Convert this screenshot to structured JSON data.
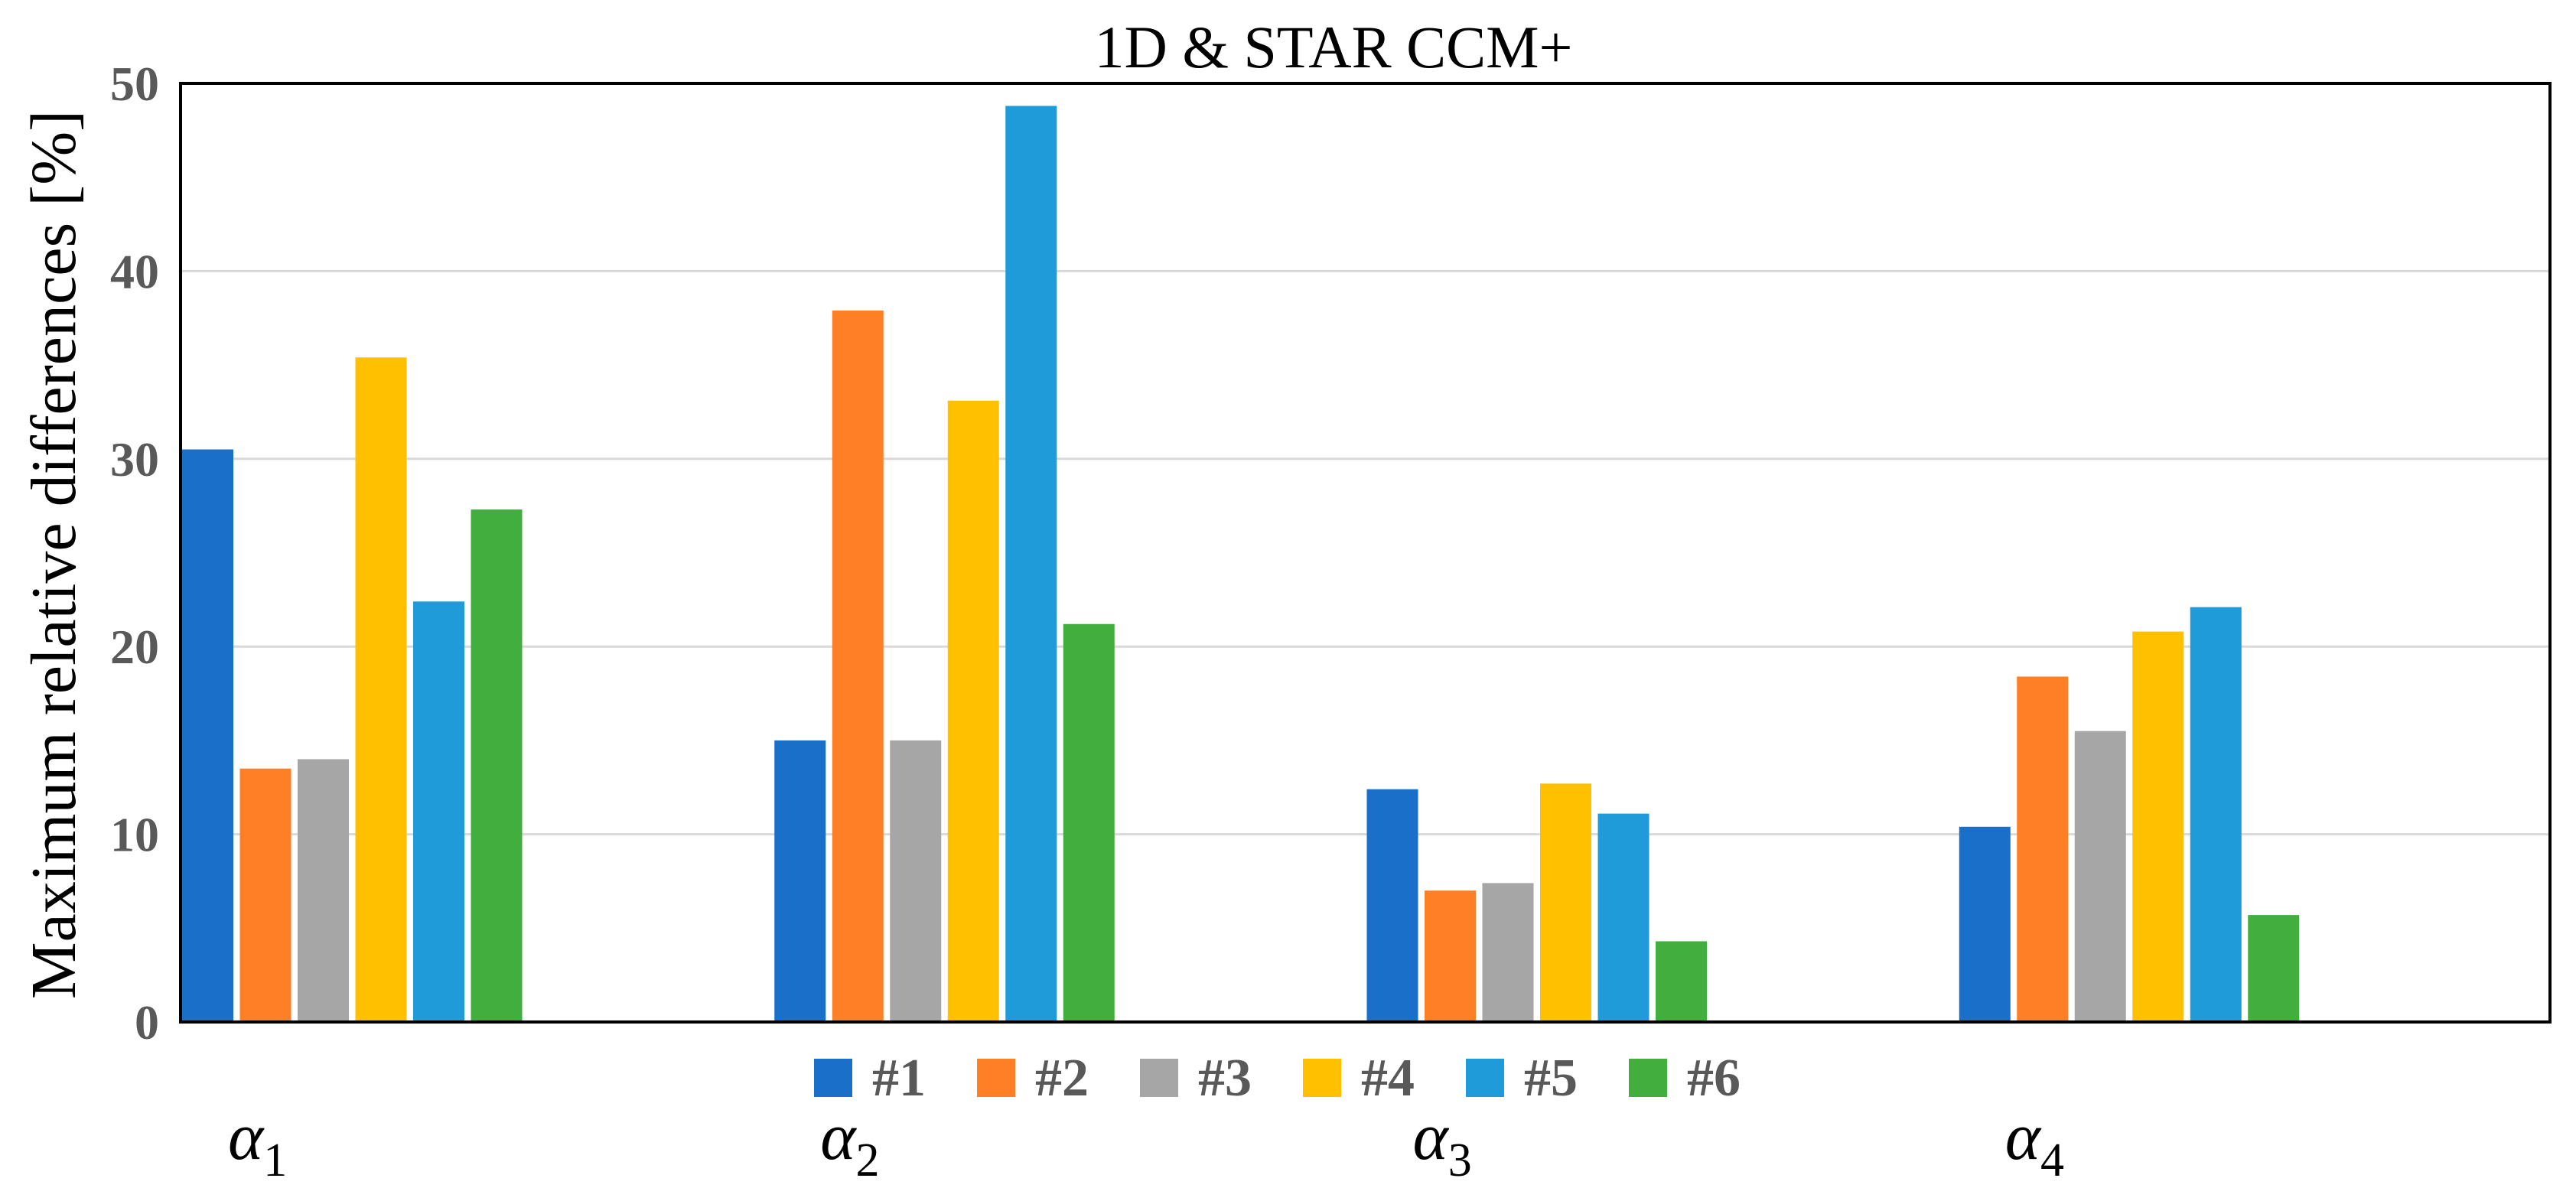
{
  "chart_data": {
    "type": "bar",
    "title": "1D & STAR CCM+",
    "xlabel": "",
    "ylabel": "Maximum relative differences [%]",
    "ylim": [
      0,
      50
    ],
    "y_ticks": [
      0,
      10,
      20,
      30,
      40,
      50
    ],
    "grid": true,
    "legend_position": "bottom-center",
    "categories": [
      {
        "symbol": "α",
        "subscript": "1"
      },
      {
        "symbol": "α",
        "subscript": "2"
      },
      {
        "symbol": "α",
        "subscript": "3"
      },
      {
        "symbol": "α",
        "subscript": "4"
      }
    ],
    "series": [
      {
        "name": "#1",
        "color": "#1a6fc9",
        "values": [
          30.5,
          15.0,
          12.4,
          10.4
        ]
      },
      {
        "name": "#2",
        "color": "#ff7f27",
        "values": [
          13.5,
          37.9,
          7.0,
          18.4
        ]
      },
      {
        "name": "#3",
        "color": "#a6a6a6",
        "values": [
          14.0,
          15.0,
          7.4,
          15.5
        ]
      },
      {
        "name": "#4",
        "color": "#ffc000",
        "values": [
          35.4,
          33.1,
          12.7,
          20.8
        ]
      },
      {
        "name": "#5",
        "color": "#1f9bda",
        "values": [
          22.4,
          48.8,
          11.1,
          22.1
        ]
      },
      {
        "name": "#6",
        "color": "#41ae3e",
        "values": [
          27.3,
          21.2,
          4.3,
          5.7
        ]
      }
    ]
  }
}
